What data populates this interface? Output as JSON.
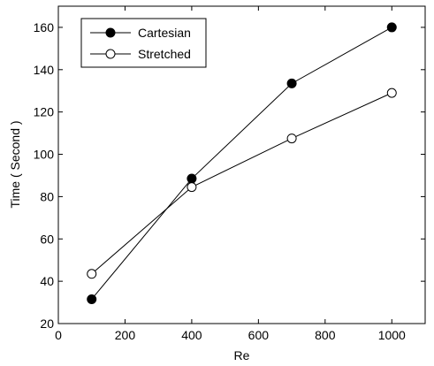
{
  "chart_data": {
    "type": "line",
    "title": "",
    "xlabel": "Re",
    "ylabel": "Time ( Second )",
    "xlim": [
      0,
      1100
    ],
    "ylim": [
      20,
      170
    ],
    "xticks": [
      0,
      200,
      400,
      600,
      800,
      1000
    ],
    "yticks": [
      20,
      40,
      60,
      80,
      100,
      120,
      140,
      160
    ],
    "grid": false,
    "legend_position": "top-left",
    "series": [
      {
        "name": "Cartesian",
        "marker": "filled-circle",
        "color": "#000000",
        "x": [
          100,
          400,
          700,
          1000
        ],
        "y": [
          31.5,
          88.5,
          133.5,
          160
        ]
      },
      {
        "name": "Stretched",
        "marker": "open-circle",
        "color": "#000000",
        "x": [
          100,
          400,
          700,
          1000
        ],
        "y": [
          43.5,
          84.5,
          107.5,
          129
        ]
      }
    ]
  }
}
